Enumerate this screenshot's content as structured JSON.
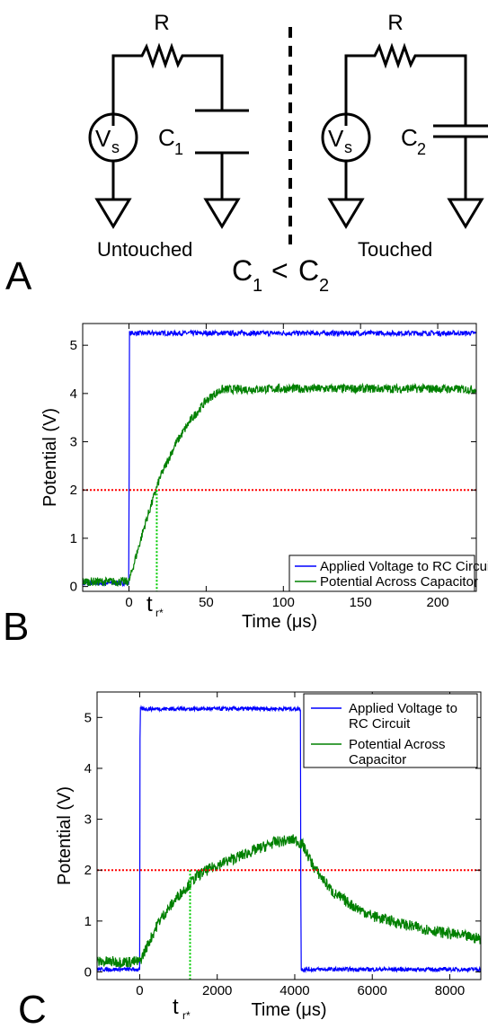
{
  "panelA": {
    "letter": "A",
    "resistor_label": "R",
    "source_main": "V",
    "source_sub": "s",
    "cap1_main": "C",
    "cap1_sub": "1",
    "cap2_main": "C",
    "cap2_sub": "2",
    "untouched": "Untouched",
    "touched": "Touched",
    "rel_c1": "C",
    "rel_c1_sub": "1",
    "rel_lt": "<",
    "rel_c2": "C",
    "rel_c2_sub": "2"
  },
  "panelB": {
    "letter": "B",
    "tr_main": "t",
    "tr_sub": "r*"
  },
  "panelC": {
    "letter": "C",
    "tr_main": "t",
    "tr_sub": "r*"
  },
  "colors": {
    "applied": "#0000ff",
    "capacitor": "#008000",
    "threshold": "#ff0000",
    "tr_marker": "#00cc00"
  },
  "chart_data": [
    {
      "type": "line",
      "panel": "B",
      "xlabel": "Time (μs)",
      "ylabel": "Potential (V)",
      "xlim": [
        -30,
        225
      ],
      "ylim": [
        -0.1,
        5.45
      ],
      "xticks": [
        0,
        50,
        100,
        150,
        200
      ],
      "yticks": [
        0,
        1,
        2,
        3,
        4,
        5
      ],
      "threshold_y": 2,
      "tr_x": 18,
      "legend_position": "bottom-right",
      "series": [
        {
          "name": "Applied Voltage to RC Circuit",
          "color": "#0000ff",
          "noise": 0.05,
          "x": [
            -30,
            0,
            0.2,
            225
          ],
          "y": [
            0.07,
            0.07,
            5.25,
            5.25
          ]
        },
        {
          "name": "Potential Across Capacitor",
          "color": "#008000",
          "noise": 0.09,
          "x": [
            -30,
            0,
            10,
            20,
            30,
            40,
            50,
            55,
            60,
            100,
            150,
            200,
            225
          ],
          "y": [
            0.1,
            0.1,
            1.25,
            2.25,
            2.95,
            3.45,
            3.85,
            3.98,
            4.08,
            4.1,
            4.1,
            4.1,
            4.08
          ]
        }
      ]
    },
    {
      "type": "line",
      "panel": "C",
      "xlabel": "Time (μs)",
      "ylabel": "Potential (V)",
      "xlim": [
        -1100,
        8800
      ],
      "ylim": [
        -0.15,
        5.5
      ],
      "xticks": [
        0,
        2000,
        4000,
        6000,
        8000
      ],
      "yticks": [
        0,
        1,
        2,
        3,
        4,
        5
      ],
      "threshold_y": 2,
      "tr_x": 1300,
      "legend_position": "top-right",
      "series": [
        {
          "name": "Applied Voltage to RC Circuit",
          "color": "#0000ff",
          "noise": 0.04,
          "x": [
            -1100,
            0,
            10,
            4150,
            4160,
            8800
          ],
          "y": [
            0.05,
            0.05,
            5.17,
            5.17,
            0.05,
            0.05
          ]
        },
        {
          "name": "Potential Across Capacitor",
          "color": "#008000",
          "noise": 0.11,
          "x": [
            -1100,
            0,
            500,
            1000,
            1500,
            2000,
            2500,
            3000,
            3500,
            4000,
            4200,
            4500,
            5000,
            5500,
            6000,
            7000,
            8000,
            8800
          ],
          "y": [
            0.2,
            0.2,
            1.0,
            1.5,
            1.9,
            2.1,
            2.25,
            2.4,
            2.55,
            2.6,
            2.5,
            2.05,
            1.55,
            1.3,
            1.1,
            0.9,
            0.75,
            0.65
          ]
        }
      ]
    }
  ]
}
